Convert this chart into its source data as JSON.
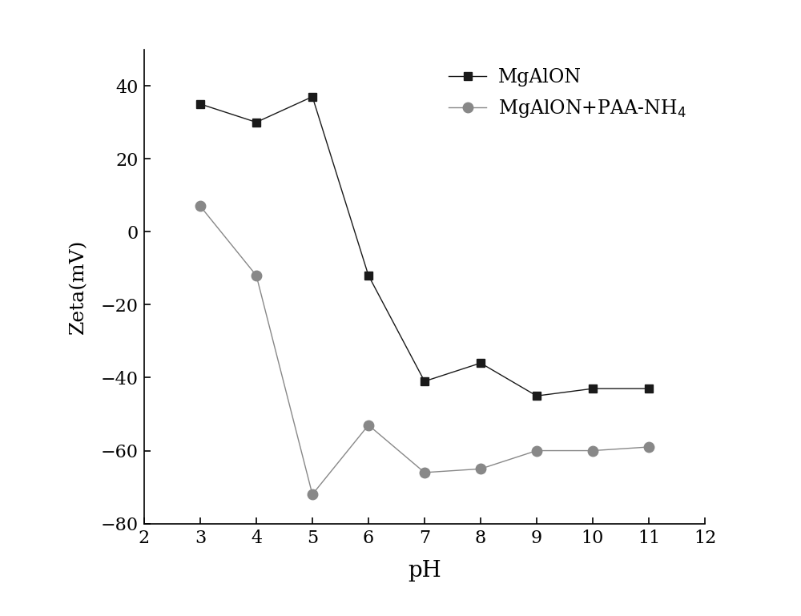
{
  "mgalon_x": [
    3,
    4,
    5,
    6,
    7,
    8,
    9,
    10,
    11
  ],
  "mgalon_y": [
    35,
    30,
    37,
    -12,
    -41,
    -36,
    -45,
    -43,
    -43
  ],
  "mgalon_paa_x": [
    3,
    4,
    5,
    6,
    7,
    8,
    9,
    10,
    11
  ],
  "mgalon_paa_y": [
    7,
    -12,
    -72,
    -53,
    -66,
    -65,
    -60,
    -60,
    -59
  ],
  "mgalon_color": "#1a1a1a",
  "mgalon_paa_color": "#888888",
  "mgalon_label": "MgAlON",
  "mgalon_paa_label": "MgAlON+PAA-NH$_4$",
  "xlabel": "pH",
  "ylabel": "Zeta(mV)",
  "xlim": [
    2,
    12
  ],
  "ylim": [
    -80,
    50
  ],
  "xticks": [
    2,
    3,
    4,
    5,
    6,
    7,
    8,
    9,
    10,
    11,
    12
  ],
  "yticks": [
    -80,
    -60,
    -40,
    -20,
    0,
    20,
    40
  ],
  "figsize": [
    10,
    7.69
  ],
  "dpi": 100,
  "legend_line_color": "#aaaaaa",
  "line_style": "--"
}
